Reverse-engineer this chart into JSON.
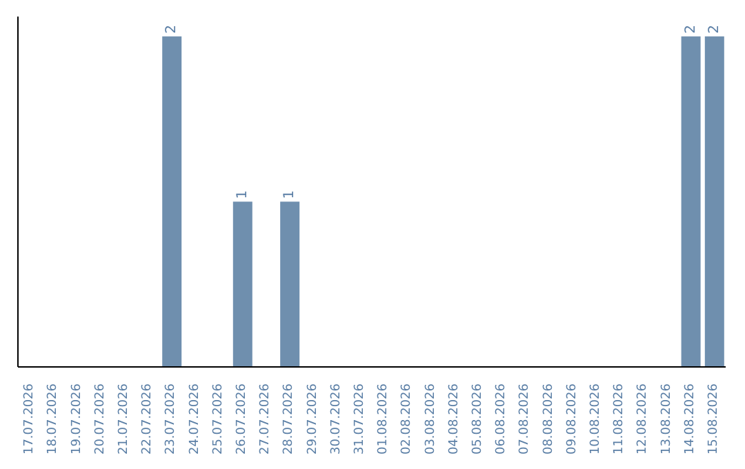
{
  "chart_data": {
    "type": "bar",
    "categories": [
      "17.07.2026",
      "18.07.2026",
      "19.07.2026",
      "20.07.2026",
      "21.07.2026",
      "22.07.2026",
      "23.07.2026",
      "24.07.2026",
      "25.07.2026",
      "26.07.2026",
      "27.07.2026",
      "28.07.2026",
      "29.07.2026",
      "30.07.2026",
      "31.07.2026",
      "01.08.2026",
      "02.08.2026",
      "03.08.2026",
      "04.08.2026",
      "05.08.2026",
      "06.08.2026",
      "07.08.2026",
      "08.08.2026",
      "09.08.2026",
      "10.08.2026",
      "11.08.2026",
      "12.08.2026",
      "13.08.2026",
      "14.08.2026",
      "15.08.2026"
    ],
    "values": [
      0,
      0,
      0,
      0,
      0,
      0,
      2,
      0,
      0,
      1,
      0,
      1,
      0,
      0,
      0,
      0,
      0,
      0,
      0,
      0,
      0,
      0,
      0,
      0,
      0,
      0,
      0,
      0,
      2,
      2
    ],
    "value_labels": [
      null,
      null,
      null,
      null,
      null,
      null,
      "2",
      null,
      null,
      "1",
      null,
      "1",
      null,
      null,
      null,
      null,
      null,
      null,
      null,
      null,
      null,
      null,
      null,
      null,
      null,
      null,
      null,
      null,
      "2",
      "2"
    ],
    "color": "#6f8fae",
    "tick_labels": "x",
    "grid": false
  }
}
